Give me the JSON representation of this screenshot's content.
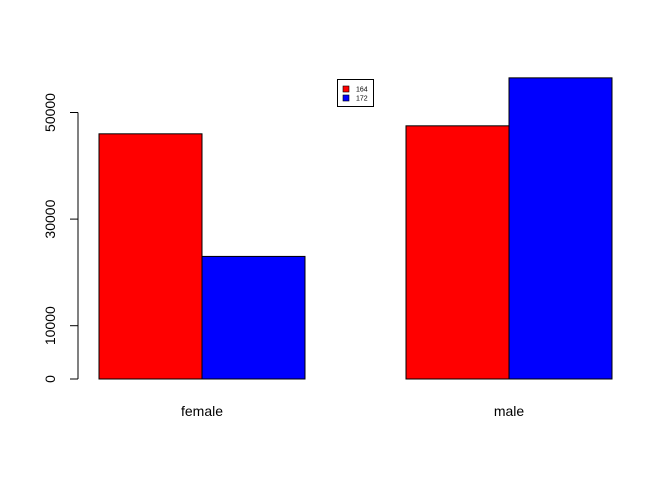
{
  "chart_data": {
    "type": "bar",
    "title": "",
    "xlabel": "",
    "ylabel": "",
    "categories": [
      "female",
      "male"
    ],
    "series": [
      {
        "name": "164",
        "color": "#ff0000",
        "values": [
          46000,
          47500
        ]
      },
      {
        "name": "172",
        "color": "#0000ff",
        "values": [
          23000,
          56500
        ]
      }
    ],
    "ylim": [
      0,
      58000
    ],
    "y_ticks": [
      0,
      10000,
      30000,
      50000
    ],
    "y_tick_labels": [
      "0",
      "10000",
      "30000",
      "50000"
    ],
    "grid": false,
    "legend_position": "top-center"
  }
}
